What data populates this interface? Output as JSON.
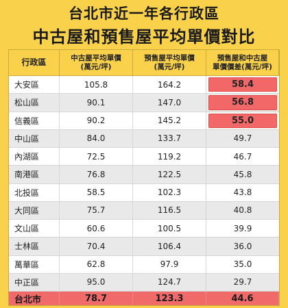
{
  "title_line1": "台北市近一年各行政區",
  "title_line2": "中古屋和預售屋平均單價對比",
  "colors": {
    "background": "#f9d14a",
    "highlight": "#f26767",
    "row_alt": "#e9e9e9"
  },
  "chart_data": {
    "type": "table",
    "title": "台北市近一年各行政區 中古屋和預售屋平均單價對比",
    "columns": [
      {
        "line1": "行政區",
        "line2": ""
      },
      {
        "line1": "中古屋平均單價",
        "line2": "(萬元/坪)"
      },
      {
        "line1": "預售屋平均單價",
        "line2": "(萬元/坪)"
      },
      {
        "line1": "預售屋和中古屋",
        "line2": "單價價差(萬元/坪)"
      }
    ],
    "rows": [
      {
        "district": "大安區",
        "used": "105.8",
        "presale": "164.2",
        "diff": "58.4",
        "highlight": true
      },
      {
        "district": "松山區",
        "used": "90.1",
        "presale": "147.0",
        "diff": "56.8",
        "highlight": true
      },
      {
        "district": "信義區",
        "used": "90.2",
        "presale": "145.2",
        "diff": "55.0",
        "highlight": true
      },
      {
        "district": "中山區",
        "used": "84.0",
        "presale": "133.7",
        "diff": "49.7",
        "highlight": false
      },
      {
        "district": "內湖區",
        "used": "72.5",
        "presale": "119.2",
        "diff": "46.7",
        "highlight": false
      },
      {
        "district": "南港區",
        "used": "76.8",
        "presale": "122.5",
        "diff": "45.8",
        "highlight": false
      },
      {
        "district": "北投區",
        "used": "58.5",
        "presale": "102.3",
        "diff": "43.8",
        "highlight": false
      },
      {
        "district": "大同區",
        "used": "75.7",
        "presale": "116.5",
        "diff": "40.8",
        "highlight": false
      },
      {
        "district": "文山區",
        "used": "60.6",
        "presale": "100.5",
        "diff": "39.9",
        "highlight": false
      },
      {
        "district": "士林區",
        "used": "70.4",
        "presale": "106.4",
        "diff": "36.0",
        "highlight": false
      },
      {
        "district": "萬華區",
        "used": "62.8",
        "presale": "97.9",
        "diff": "35.0",
        "highlight": false
      },
      {
        "district": "中正區",
        "used": "95.0",
        "presale": "124.7",
        "diff": "29.7",
        "highlight": false
      }
    ],
    "total": {
      "district": "台北市",
      "used": "78.7",
      "presale": "123.3",
      "diff": "44.6"
    }
  }
}
